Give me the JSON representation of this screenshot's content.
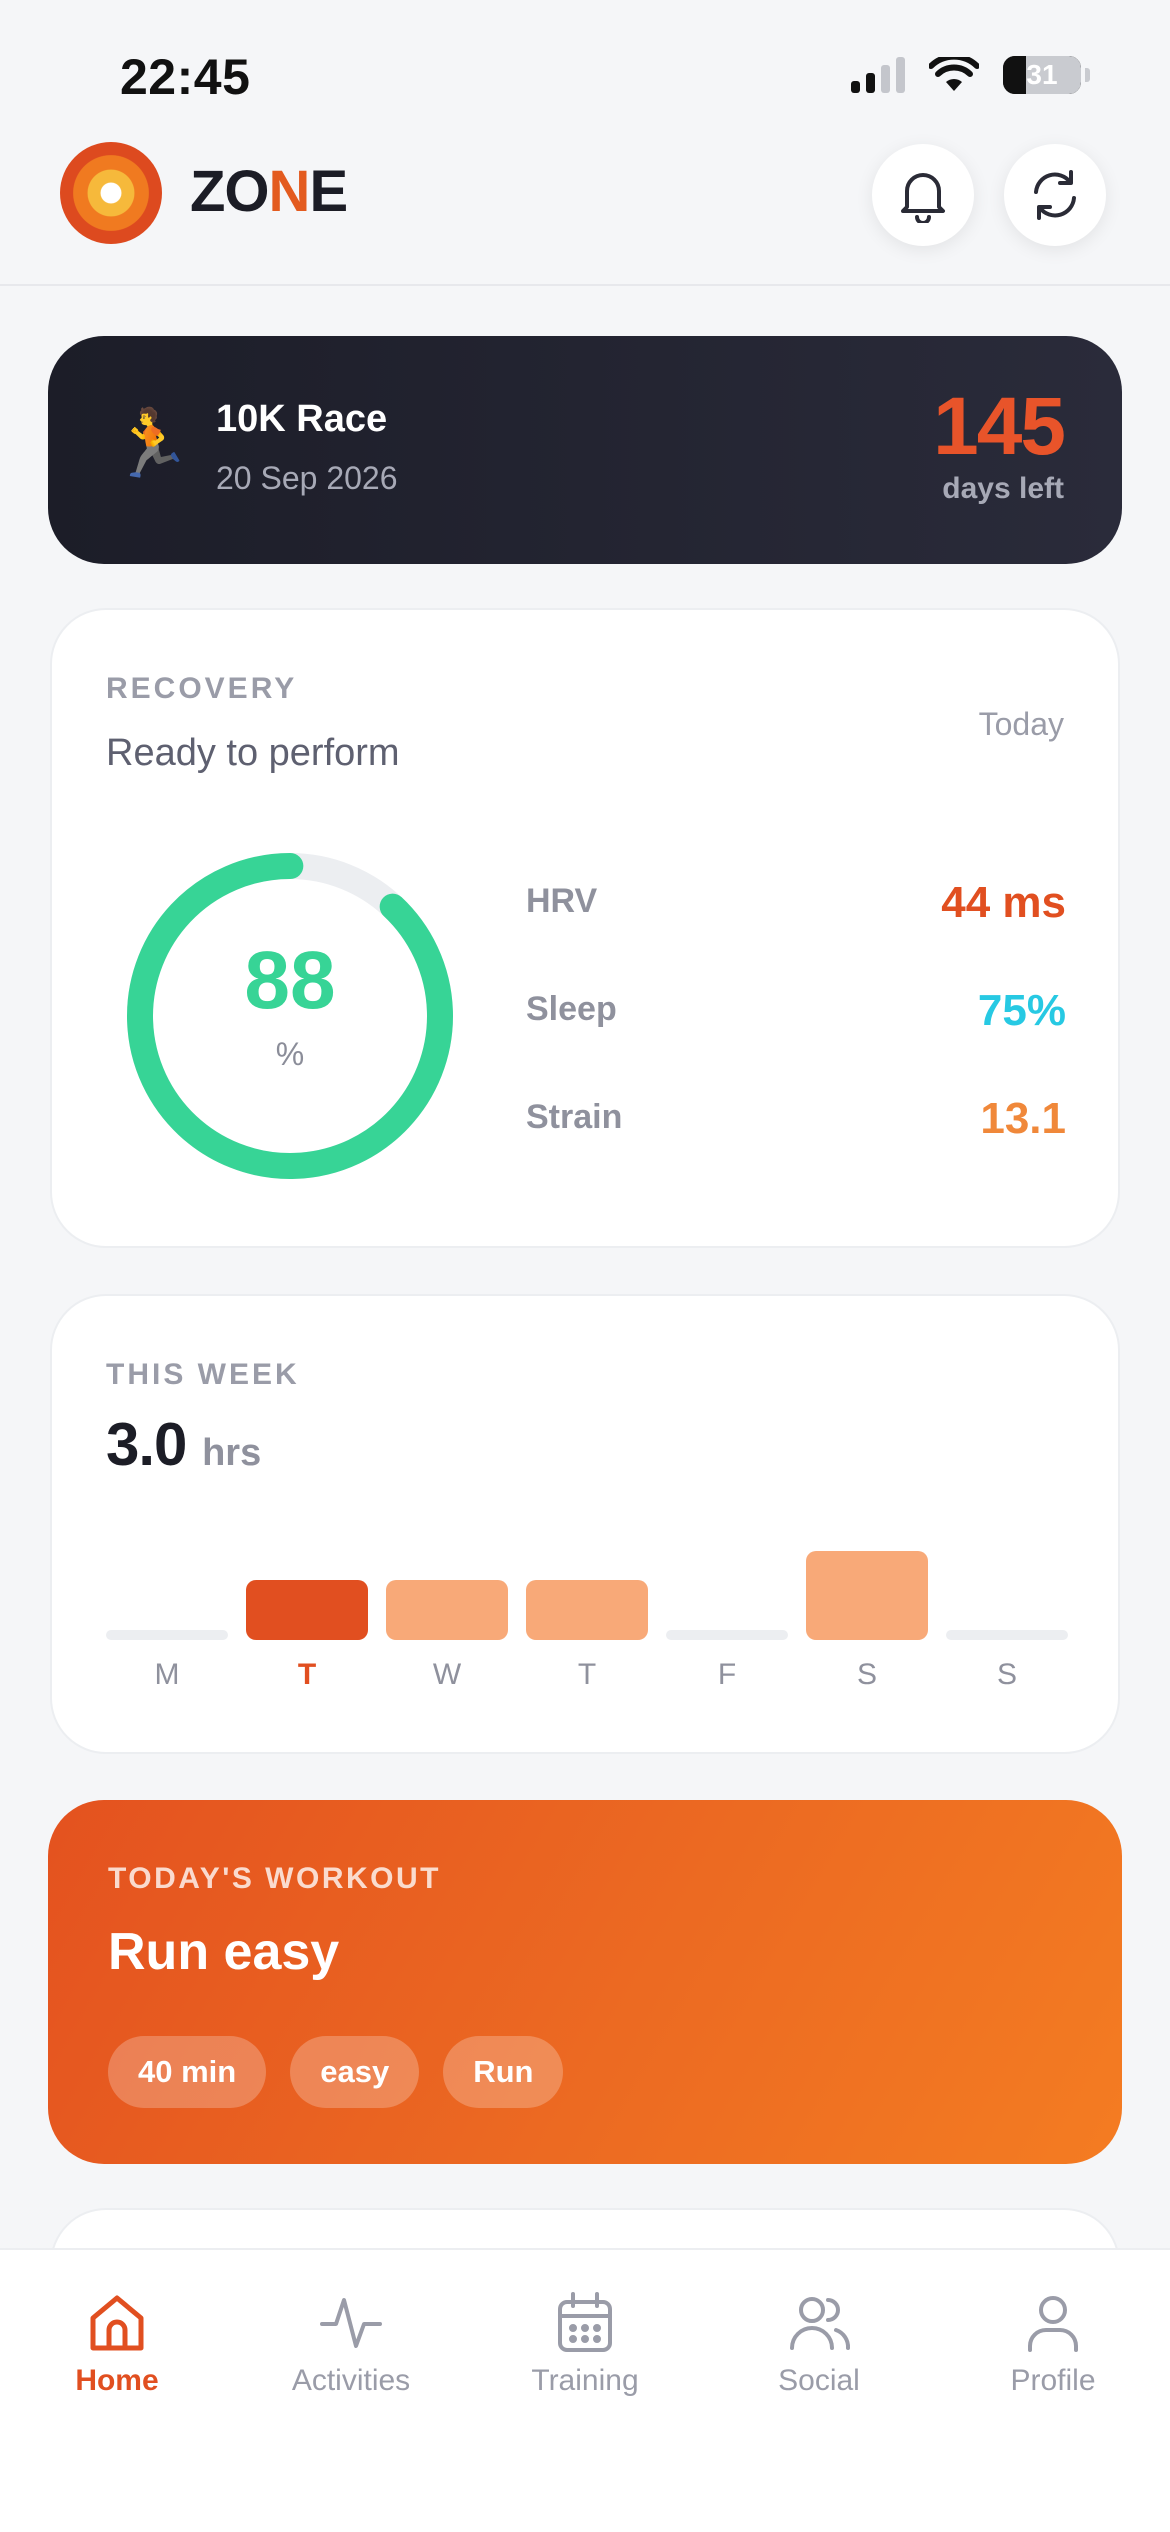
{
  "status_bar": {
    "time": "22:45",
    "battery": "31"
  },
  "header": {
    "brand_prefix": "ZO",
    "brand_accent": "N",
    "brand_suffix": "E"
  },
  "race": {
    "emoji": "🏃",
    "name": "10K Race",
    "date": "20 Sep 2026",
    "days": "145",
    "days_label": "days left"
  },
  "recovery": {
    "eyebrow": "RECOVERY",
    "status": "Ready to perform",
    "when": "Today",
    "score": "88",
    "score_unit": "%",
    "score_fraction": 0.88,
    "metrics": [
      {
        "label": "HRV",
        "value": "44 ms",
        "color": "#e14f20"
      },
      {
        "label": "Sleep",
        "value": "75%",
        "color": "#27c9e3"
      },
      {
        "label": "Strain",
        "value": "13.1",
        "color": "#f0883a"
      }
    ]
  },
  "week": {
    "eyebrow": "THIS WEEK",
    "total": "3.0",
    "unit": "hrs",
    "days": [
      {
        "label": "M",
        "level": 0,
        "active": false
      },
      {
        "label": "T",
        "level": 0.42,
        "active": true
      },
      {
        "label": "W",
        "level": 0.42,
        "active": false
      },
      {
        "label": "T",
        "level": 0.42,
        "active": false
      },
      {
        "label": "F",
        "level": 0,
        "active": false
      },
      {
        "label": "S",
        "level": 0.62,
        "active": false
      },
      {
        "label": "S",
        "level": 0,
        "active": false
      }
    ]
  },
  "workout": {
    "eyebrow": "TODAY'S WORKOUT",
    "name": "Run easy",
    "tags": [
      "40 min",
      "easy",
      "Run"
    ]
  },
  "tabs": [
    {
      "label": "Home",
      "icon": "home-icon",
      "active": true
    },
    {
      "label": "Activities",
      "icon": "activity-icon",
      "active": false
    },
    {
      "label": "Training",
      "icon": "calendar-icon",
      "active": false
    },
    {
      "label": "Social",
      "icon": "users-icon",
      "active": false
    },
    {
      "label": "Profile",
      "icon": "user-icon",
      "active": false
    }
  ],
  "colors": {
    "accent": "#e14f20",
    "recovery_green": "#37d496",
    "bar_light": "#f8a978",
    "bar_empty": "#eceef1",
    "inactive_icon": "#9a9ca8"
  }
}
